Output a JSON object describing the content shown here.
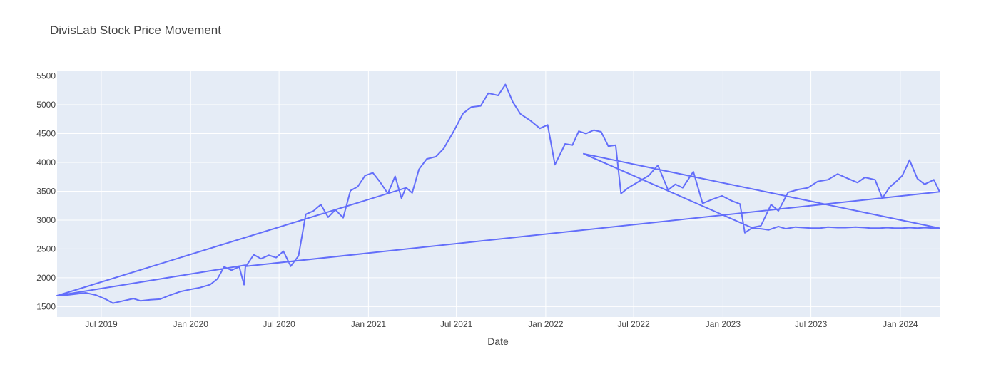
{
  "chart_data": {
    "type": "line",
    "title": "DivisLab Stock Price Movement",
    "xlabel": "Date",
    "ylabel": "",
    "x_range": [
      "2019-04-01",
      "2024-03-22"
    ],
    "ylim": [
      1320,
      5580
    ],
    "grid": true,
    "y_ticks": [
      1500,
      2000,
      2500,
      3000,
      3500,
      4000,
      4500,
      5000,
      5500
    ],
    "x_ticks": [
      {
        "date": "2019-07-01",
        "label": "Jul 2019"
      },
      {
        "date": "2020-01-01",
        "label": "Jan 2020"
      },
      {
        "date": "2020-07-01",
        "label": "Jul 2020"
      },
      {
        "date": "2021-01-01",
        "label": "Jan 2021"
      },
      {
        "date": "2021-07-01",
        "label": "Jul 2021"
      },
      {
        "date": "2022-01-01",
        "label": "Jan 2022"
      },
      {
        "date": "2022-07-01",
        "label": "Jul 2022"
      },
      {
        "date": "2023-01-01",
        "label": "Jan 2023"
      },
      {
        "date": "2023-07-01",
        "label": "Jul 2023"
      },
      {
        "date": "2024-01-01",
        "label": "Jan 2024"
      }
    ],
    "line_color": "#636efa",
    "series": [
      {
        "x": [
          "2019-04-01",
          "2019-04-20",
          "2019-05-10",
          "2019-05-30",
          "2019-06-20",
          "2019-07-10",
          "2019-07-25",
          "2019-08-15",
          "2019-09-05",
          "2019-09-20",
          "2019-10-10",
          "2019-10-30",
          "2019-11-20",
          "2019-12-10",
          "2020-01-01",
          "2020-01-20",
          "2020-02-10",
          "2020-02-25",
          "2020-03-10",
          "2020-03-25",
          "2020-04-10",
          "2020-04-20",
          "2020-04-23",
          "2019-04-01",
          "2021-03-20",
          "2021-03-20",
          "2021-04-01",
          "2021-04-15",
          "2021-05-01",
          "2021-05-20",
          "2021-06-05",
          "2021-06-25",
          "2021-07-15",
          "2021-08-01",
          "2021-08-20",
          "2021-09-05",
          "2021-09-25",
          "2021-10-10",
          "2021-10-25",
          "2021-11-10",
          "2021-12-01",
          "2021-12-20",
          "2022-01-05",
          "2022-01-20",
          "2022-02-10",
          "2022-02-25",
          "2022-03-10",
          "2022-03-25",
          "2022-04-10",
          "2022-04-25",
          "2022-05-10",
          "2022-05-25",
          "2022-06-05",
          "2022-06-20",
          "2022-07-10",
          "2022-08-01",
          "2022-08-20",
          "2022-09-10",
          "2022-09-25",
          "2022-10-10",
          "2022-11-01",
          "2022-11-20",
          "2022-12-10",
          "2022-12-30",
          "2023-01-20",
          "2023-02-05",
          "2023-02-15",
          "2023-03-01",
          "2023-03-20",
          "2023-04-05",
          "2023-04-25",
          "2023-05-10",
          "2023-05-30",
          "2023-06-15",
          "2023-07-01",
          "2023-07-20",
          "2023-08-05",
          "2023-08-25",
          "2023-09-10",
          "2023-10-01",
          "2023-10-20",
          "2023-11-01",
          "2023-11-20",
          "2023-12-05",
          "2023-12-20",
          "2024-01-05",
          "2024-01-20",
          "2024-02-05",
          "2024-02-20",
          "2024-03-10",
          "2024-03-22",
          "2022-03-20",
          "2023-03-01",
          "2023-03-01",
          "2023-03-20",
          "2023-04-10",
          "2023-04-25",
          "2023-05-15",
          "2023-06-05",
          "2023-06-25",
          "2023-07-15",
          "2023-08-05",
          "2023-08-25",
          "2023-09-15",
          "2023-10-05",
          "2023-10-20",
          "2023-11-10",
          "2023-11-25",
          "2023-12-10",
          "2023-12-25",
          "2024-01-05",
          "2024-01-20",
          "2024-02-05",
          "2024-02-20",
          "2024-03-10",
          "2024-03-22",
          "2024-03-22",
          "2020-04-24",
          "2020-04-24",
          "2020-05-10",
          "2020-05-25",
          "2020-06-10",
          "2020-06-25",
          "2020-07-10",
          "2020-07-25",
          "2020-08-10",
          "2020-08-25",
          "2020-09-10",
          "2020-09-25",
          "2020-10-10",
          "2020-10-25",
          "2020-11-10",
          "2020-11-25",
          "2020-12-10",
          "2020-12-25",
          "2021-01-10",
          "2021-01-25",
          "2021-02-10",
          "2021-02-25",
          "2021-03-10",
          "2021-03-19"
        ],
        "y": [
          1690,
          1700,
          1720,
          1740,
          1700,
          1630,
          1560,
          1600,
          1640,
          1600,
          1620,
          1630,
          1700,
          1760,
          1800,
          1830,
          1880,
          1980,
          2190,
          2130,
          2190,
          1880,
          2220,
          1690,
          3560,
          3560,
          3470,
          3880,
          4060,
          4100,
          4240,
          4530,
          4850,
          4960,
          4980,
          5200,
          5160,
          5350,
          5050,
          4840,
          4720,
          4590,
          4650,
          3960,
          4320,
          4300,
          4540,
          4500,
          4560,
          4530,
          4280,
          4300,
          3460,
          3560,
          3660,
          3770,
          3950,
          3520,
          3620,
          3560,
          3840,
          3290,
          3360,
          3420,
          3330,
          3280,
          2780,
          2860,
          2850,
          2830,
          2890,
          2850,
          2880,
          2870,
          2860,
          2860,
          2880,
          2870,
          2870,
          2880,
          2870,
          2860,
          2860,
          2870,
          2860,
          2860,
          2870,
          2860,
          2870,
          2860,
          2860,
          4150,
          2870,
          2870,
          2900,
          3270,
          3160,
          3480,
          3530,
          3560,
          3670,
          3700,
          3800,
          3720,
          3650,
          3740,
          3700,
          3380,
          3570,
          3680,
          3770,
          4040,
          3720,
          3620,
          3700,
          3490,
          3490,
          2200,
          2200,
          2400,
          2330,
          2390,
          2350,
          2460,
          2200,
          2380,
          3100,
          3160,
          3270,
          3050,
          3180,
          3040,
          3510,
          3580,
          3770,
          3820,
          3660,
          3460,
          3760,
          3380,
          3560
        ]
      }
    ]
  }
}
